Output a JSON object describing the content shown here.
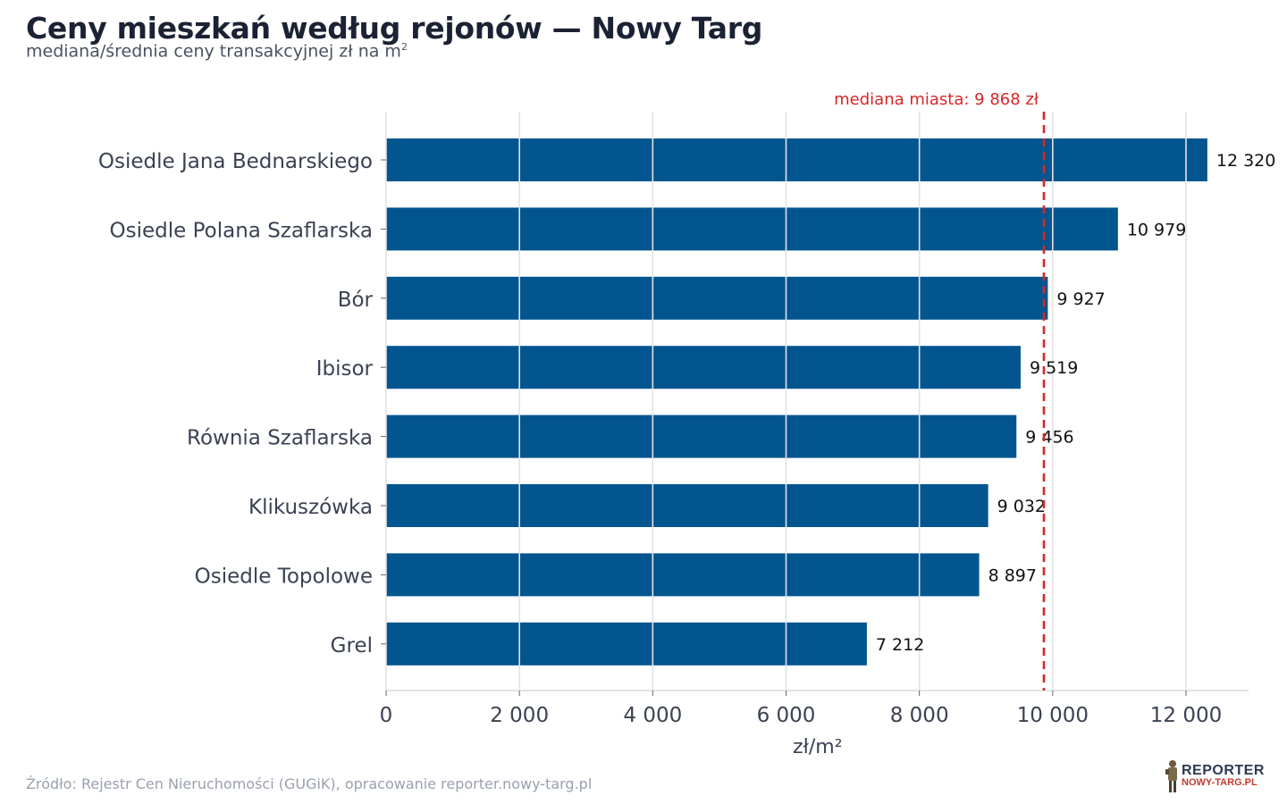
{
  "title": "Ceny mieszkań według rejonów — Nowy Targ",
  "subtitle": "mediana/średnia ceny transakcyjnej zł na m",
  "subtitle_sup": "2",
  "source": "Źródło: Rejestr Cen Nieruchomości (GUGiK), opracowanie reporter.nowy-targ.pl",
  "logo": {
    "top_text": "REPORTER",
    "bottom_text": "NOWY-TARG.PL",
    "icon": "reporter-figure-icon"
  },
  "colors": {
    "bar": "#02558f",
    "median_line": "#d62728",
    "grid": "#e3e3e3",
    "axis_text": "#3b4252",
    "value_text": "#111111"
  },
  "chart_data": {
    "type": "bar",
    "orientation": "horizontal",
    "categories": [
      "Osiedle Jana Bednarskiego",
      "Osiedle Polana Szaflarska",
      "Bór",
      "Ibisor",
      "Równia Szaflarska",
      "Klikuszówka",
      "Osiedle Topolowe",
      "Grel"
    ],
    "values": [
      12320,
      10979,
      9927,
      9519,
      9456,
      9032,
      8897,
      7212
    ],
    "value_labels": [
      "12 320",
      "10 979",
      "9 927",
      "9 519",
      "9 456",
      "9 032",
      "8 897",
      "7 212"
    ],
    "xlabel": "zł/m²",
    "ylabel": "",
    "xlim": [
      0,
      12950
    ],
    "xticks": [
      0,
      2000,
      4000,
      6000,
      8000,
      10000,
      12000
    ],
    "xtick_labels": [
      "0",
      "2 000",
      "4 000",
      "6 000",
      "8 000",
      "10 000",
      "12 000"
    ],
    "grid": true,
    "reference_line": {
      "value": 9868,
      "label": "mediana miasta: 9 868 zł",
      "style": "dashed"
    }
  }
}
